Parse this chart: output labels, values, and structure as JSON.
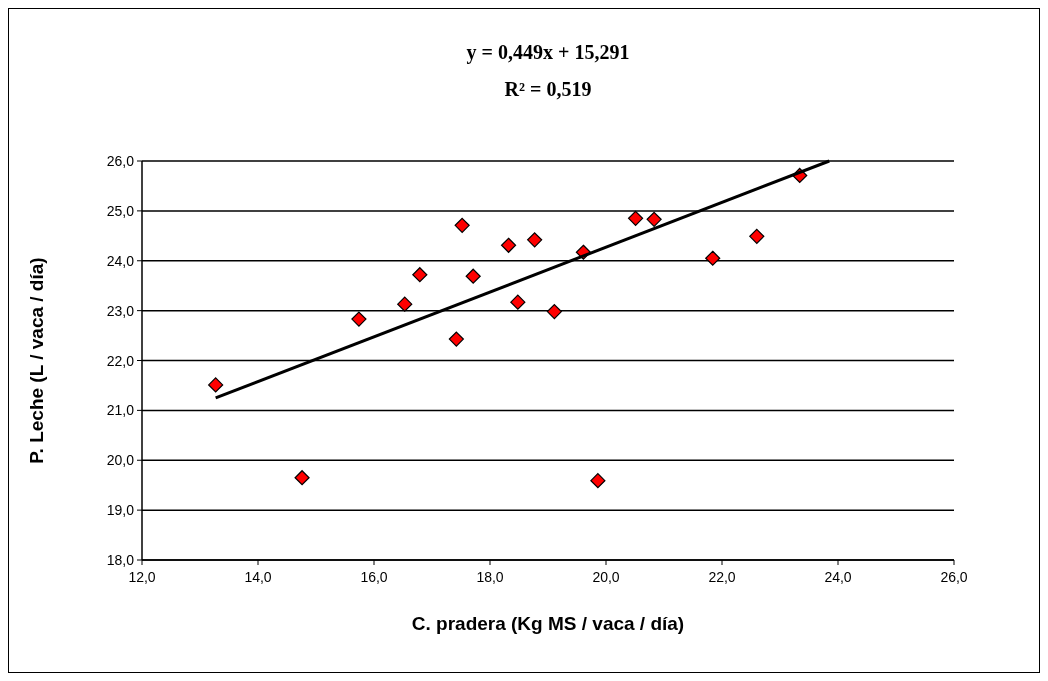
{
  "chart_data": {
    "type": "scatter",
    "title": "y = 0,449x + 15,291",
    "subtitle": "R² = 0,519",
    "xlabel": "C. pradera (Kg MS / vaca / día)",
    "ylabel": "P. Leche (L / vaca / día)",
    "series": [
      {
        "color": "#ff0000",
        "marker": "diamond",
        "x": [
          13.27,
          14.76,
          15.74,
          16.53,
          16.79,
          17.42,
          17.52,
          17.71,
          18.32,
          18.48,
          18.77,
          19.11,
          19.61,
          20.51,
          20.83,
          21.84,
          22.6,
          23.34,
          19.86
        ],
        "values": [
          21.51,
          19.65,
          22.83,
          23.13,
          23.72,
          22.43,
          24.71,
          23.69,
          24.31,
          23.17,
          24.42,
          22.98,
          24.17,
          24.85,
          24.83,
          24.05,
          24.49,
          25.71,
          19.59
        ]
      },
      {
        "type": "line",
        "color": "#000000",
        "x": [
          13.27,
          23.85
        ],
        "values": [
          21.25,
          26.0
        ]
      }
    ],
    "xlim": [
      12,
      26
    ],
    "xticks": [
      {
        "value": 12,
        "label": "12,0"
      },
      {
        "value": 14,
        "label": "14,0"
      },
      {
        "value": 16,
        "label": "16,0"
      },
      {
        "value": 18,
        "label": "18,0"
      },
      {
        "value": 20,
        "label": "20,0"
      },
      {
        "value": 22,
        "label": "22,0"
      },
      {
        "value": 24,
        "label": "24,0"
      },
      {
        "value": 26,
        "label": "26,0"
      }
    ],
    "ylim": [
      18,
      26
    ],
    "yticks": [
      {
        "value": 18,
        "label": "18,0"
      },
      {
        "value": 19,
        "label": "19,0"
      },
      {
        "value": 20,
        "label": "20,0"
      },
      {
        "value": 21,
        "label": "21,0"
      },
      {
        "value": 22,
        "label": "22,0"
      },
      {
        "value": 23,
        "label": "23,0"
      },
      {
        "value": 24,
        "label": "24,0"
      },
      {
        "value": 25,
        "label": "25,0"
      },
      {
        "value": 26,
        "label": "26,0"
      }
    ],
    "grid": "y"
  }
}
